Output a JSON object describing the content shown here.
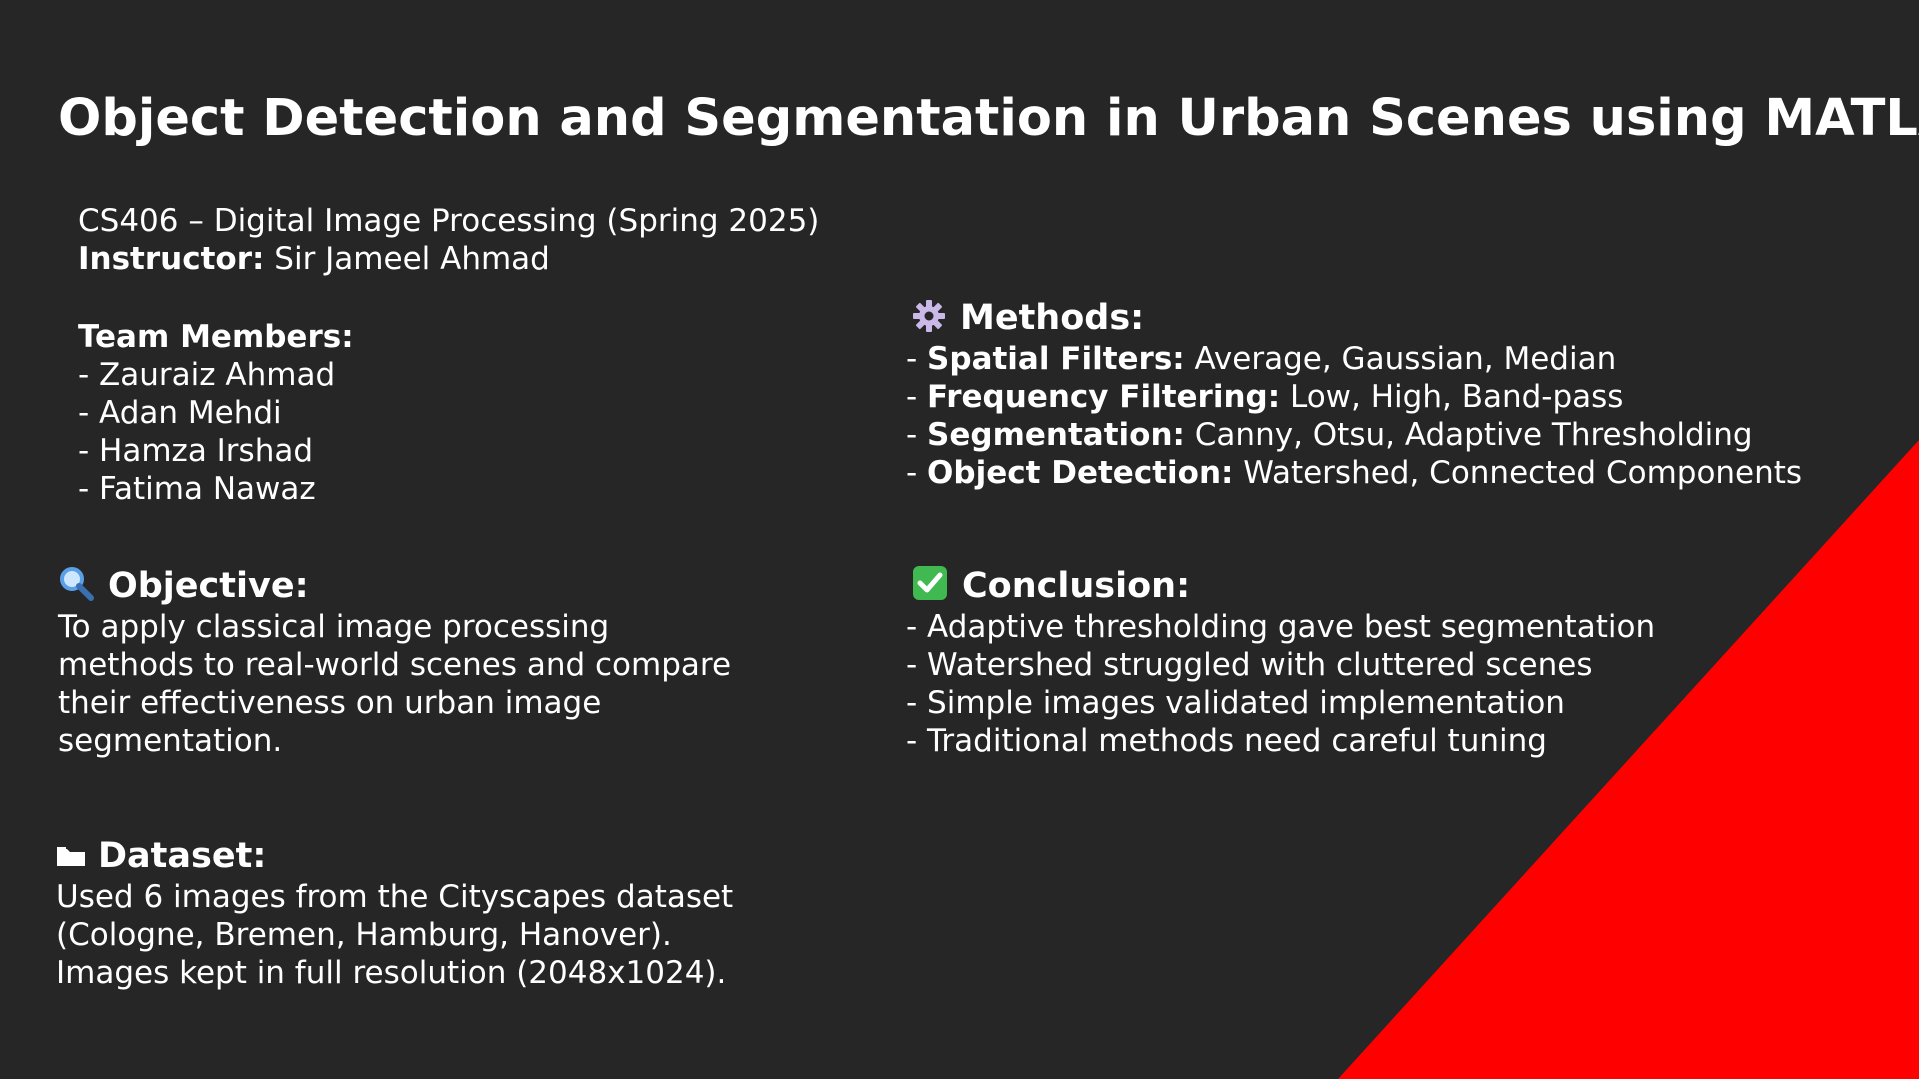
{
  "title": "Object Detection and Segmentation in Urban Scenes using MATLAB",
  "course": {
    "line": "CS406 – Digital Image Processing (Spring 2025)",
    "instructor_label": "Instructor:",
    "instructor_name": " Sir Jameel Ahmad"
  },
  "team": {
    "heading": "Team Members:",
    "members": [
      "- Zauraiz Ahmad",
      "- Adan Mehdi",
      "- Hamza Irshad",
      "- Fatima Nawaz"
    ]
  },
  "objective": {
    "icon": "search-icon",
    "heading": "Objective:",
    "lines": [
      "To apply classical image processing",
      "methods to real-world scenes and compare",
      "their effectiveness on urban image",
      "segmentation."
    ]
  },
  "dataset": {
    "icon": "folder-icon",
    "heading": "Dataset:",
    "lines": [
      "Used 6 images from the Cityscapes dataset",
      "(Cologne, Bremen, Hamburg, Hanover).",
      "Images kept in full resolution (2048x1024)."
    ]
  },
  "methods": {
    "icon": "gear-icon",
    "heading": "Methods:",
    "items": [
      {
        "prefix": "- ",
        "label": "Spatial Filters:",
        "text": " Average, Gaussian, Median"
      },
      {
        "prefix": "- ",
        "label": "Frequency Filtering:",
        "text": " Low, High, Band-pass"
      },
      {
        "prefix": "- ",
        "label": "Segmentation:",
        "text": " Canny, Otsu, Adaptive Thresholding"
      },
      {
        "prefix": "- ",
        "label": "Object Detection:",
        "text": " Watershed, Connected Components"
      }
    ]
  },
  "conclusion": {
    "icon": "check-icon",
    "heading": "Conclusion:",
    "lines": [
      "- Adaptive thresholding gave best segmentation",
      "- Watershed struggled with cluttered scenes",
      "- Simple images validated implementation",
      "- Traditional methods need careful tuning"
    ]
  },
  "colors": {
    "background": "#262626",
    "accent": "#ff0000",
    "text": "#ffffff"
  }
}
